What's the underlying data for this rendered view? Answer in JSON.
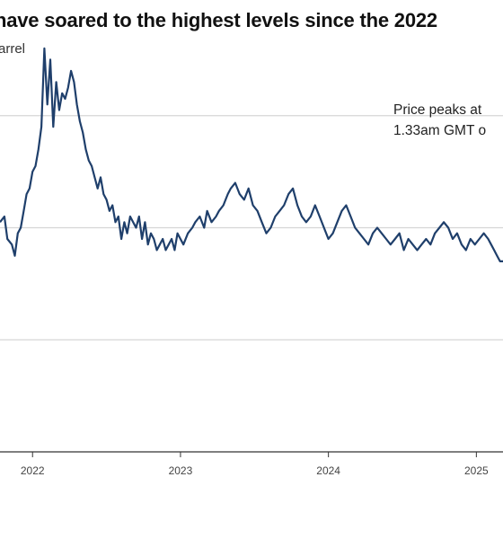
{
  "header": {
    "title": "have soared to the highest levels since the 2022",
    "subtitle": "arrel"
  },
  "chart_data": {
    "type": "line",
    "title": "have soared to the highest levels since the 2022",
    "subtitle": "arrel",
    "xlabel": "",
    "ylabel": "",
    "xlim": [
      2021.78,
      2025.18
    ],
    "ylim": [
      0,
      4
    ],
    "grid": true,
    "x_ticks": [
      "2022",
      "2023",
      "2024",
      "2025"
    ],
    "line_color": "#1f3f6b",
    "annotation": [
      "Price peaks at",
      "1.33am GMT o"
    ],
    "series": [
      {
        "x": [
          2021.78,
          2021.81,
          2021.83,
          2021.86,
          2021.88,
          2021.9,
          2021.92,
          2021.94,
          2021.96,
          2021.98,
          2022.0,
          2022.02,
          2022.04,
          2022.06,
          2022.08,
          2022.1,
          2022.12,
          2022.14,
          2022.16,
          2022.18,
          2022.2,
          2022.22,
          2022.24,
          2022.26,
          2022.28,
          2022.3,
          2022.32,
          2022.34,
          2022.36,
          2022.38,
          2022.4,
          2022.42,
          2022.44,
          2022.46,
          2022.48,
          2022.5,
          2022.52,
          2022.54,
          2022.56,
          2022.58,
          2022.6,
          2022.62,
          2022.64,
          2022.66,
          2022.68,
          2022.7,
          2022.72,
          2022.74,
          2022.76,
          2022.78,
          2022.8,
          2022.82,
          2022.84,
          2022.86,
          2022.88,
          2022.9,
          2022.92,
          2022.94,
          2022.96,
          2022.98,
          2023.0,
          2023.02,
          2023.05,
          2023.08,
          2023.1,
          2023.13,
          2023.16,
          2023.18,
          2023.21,
          2023.24,
          2023.26,
          2023.29,
          2023.32,
          2023.34,
          2023.37,
          2023.4,
          2023.43,
          2023.46,
          2023.49,
          2023.52,
          2023.55,
          2023.58,
          2023.61,
          2023.64,
          2023.67,
          2023.7,
          2023.73,
          2023.76,
          2023.79,
          2023.82,
          2023.85,
          2023.88,
          2023.91,
          2023.94,
          2023.97,
          2024.0,
          2024.03,
          2024.06,
          2024.09,
          2024.12,
          2024.15,
          2024.18,
          2024.21,
          2024.24,
          2024.27,
          2024.3,
          2024.33,
          2024.36,
          2024.39,
          2024.42,
          2024.45,
          2024.48,
          2024.51,
          2024.54,
          2024.57,
          2024.6,
          2024.63,
          2024.66,
          2024.69,
          2024.72,
          2024.75,
          2024.78,
          2024.81,
          2024.84,
          2024.87,
          2024.9,
          2024.93,
          2024.96,
          2024.99,
          2025.02,
          2025.05,
          2025.08,
          2025.1,
          2025.12,
          2025.14,
          2025.16,
          2025.18
        ],
        "y": [
          2.05,
          2.1,
          1.9,
          1.85,
          1.75,
          1.95,
          2.0,
          2.15,
          2.3,
          2.35,
          2.5,
          2.55,
          2.7,
          2.9,
          3.6,
          3.1,
          3.5,
          2.9,
          3.3,
          3.05,
          3.2,
          3.15,
          3.25,
          3.4,
          3.3,
          3.1,
          2.95,
          2.85,
          2.7,
          2.6,
          2.55,
          2.45,
          2.35,
          2.45,
          2.3,
          2.25,
          2.15,
          2.2,
          2.05,
          2.1,
          1.9,
          2.05,
          1.95,
          2.1,
          2.05,
          2.0,
          2.1,
          1.9,
          2.05,
          1.85,
          1.95,
          1.9,
          1.8,
          1.85,
          1.9,
          1.8,
          1.85,
          1.9,
          1.8,
          1.95,
          1.9,
          1.85,
          1.95,
          2.0,
          2.05,
          2.1,
          2.0,
          2.15,
          2.05,
          2.1,
          2.15,
          2.2,
          2.3,
          2.35,
          2.4,
          2.3,
          2.25,
          2.35,
          2.2,
          2.15,
          2.05,
          1.95,
          2.0,
          2.1,
          2.15,
          2.2,
          2.3,
          2.35,
          2.2,
          2.1,
          2.05,
          2.1,
          2.2,
          2.1,
          2.0,
          1.9,
          1.95,
          2.05,
          2.15,
          2.2,
          2.1,
          2.0,
          1.95,
          1.9,
          1.85,
          1.95,
          2.0,
          1.95,
          1.9,
          1.85,
          1.9,
          1.95,
          1.8,
          1.9,
          1.85,
          1.8,
          1.85,
          1.9,
          1.85,
          1.95,
          2.0,
          2.05,
          2.0,
          1.9,
          1.95,
          1.85,
          1.8,
          1.9,
          1.85,
          1.9,
          1.95,
          1.9,
          1.85,
          1.8,
          1.75,
          1.7,
          1.7
        ]
      }
    ]
  }
}
